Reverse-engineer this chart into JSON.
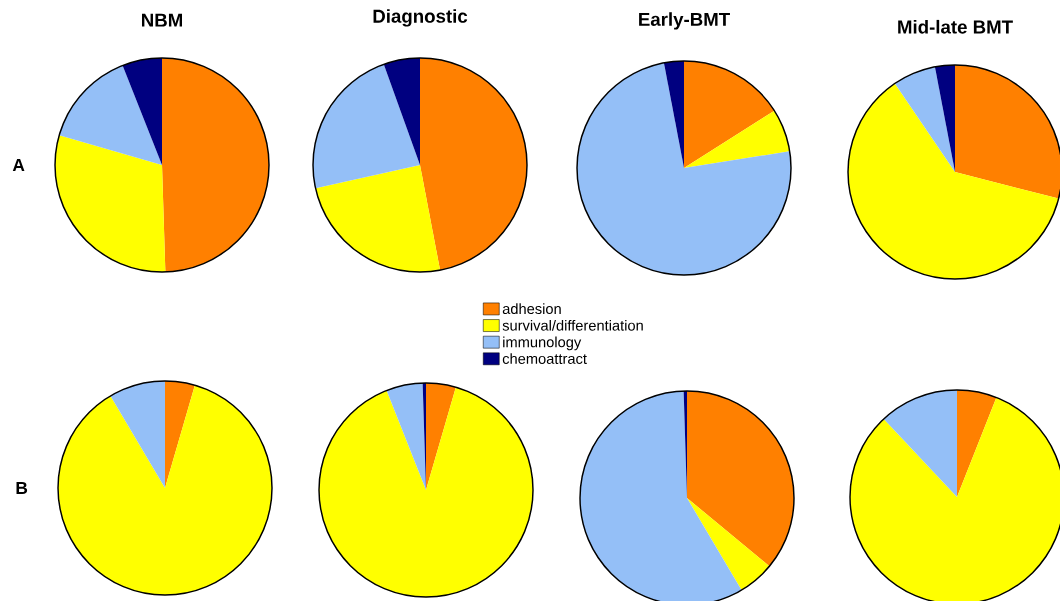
{
  "chart_data": [
    {
      "type": "pie",
      "title": "NBM",
      "categories": [
        "adhesion",
        "survival/differentiation",
        "immunology",
        "chemoattract"
      ],
      "values": [
        49.5,
        30,
        14.5,
        6
      ],
      "colors": [
        "#ff8000",
        "#ffff00",
        "#94bff7",
        "#000080"
      ],
      "legend": "bottom",
      "annotations": [
        "A"
      ]
    },
    {
      "type": "pie",
      "title": "Diagnostic",
      "categories": [
        null,
        null,
        null,
        null
      ],
      "values": [
        47,
        24.5,
        23,
        5.5
      ],
      "colors": [
        "#ff8000",
        "#ffff00",
        "#94bff7",
        "#000080"
      ]
    },
    {
      "type": "pie",
      "title": "Early-BMT",
      "categories": [
        null,
        null,
        null,
        null
      ],
      "values": [
        16,
        6.5,
        74.5,
        3
      ],
      "colors": [
        "#ff8000",
        "#ffff00",
        "#94bff7",
        "#000080"
      ]
    },
    {
      "type": "pie",
      "title": "Mid-late BMT",
      "categories": [
        null,
        null,
        null,
        null
      ],
      "values": [
        29,
        61.5,
        6.5,
        3
      ],
      "colors": [
        "#ff8000",
        "#ffff00",
        "#94bff7",
        "#000080"
      ]
    },
    {
      "type": "pie",
      "categories": [
        null,
        null,
        null,
        null
      ],
      "values": [
        4.5,
        87,
        8.5,
        0
      ],
      "colors": [
        "#ff8000",
        "#ffff00",
        "#94bff7",
        "#000080"
      ],
      "annotations": [
        "B"
      ]
    },
    {
      "type": "pie",
      "categories": [
        null,
        null,
        null,
        null
      ],
      "values": [
        4.5,
        89.5,
        5.5,
        0.5
      ],
      "colors": [
        "#ff8000",
        "#ffff00",
        "#94bff7",
        "#000080"
      ]
    },
    {
      "type": "pie",
      "categories": [
        null,
        null,
        null,
        null
      ],
      "values": [
        36,
        5.5,
        58,
        0.5
      ],
      "colors": [
        "#ff8000",
        "#ffff00",
        "#94bff7",
        "#000080"
      ]
    },
    {
      "type": "pie",
      "categories": [
        null,
        null,
        null,
        null
      ],
      "values": [
        6,
        82,
        12,
        0
      ],
      "colors": [
        "#ff8000",
        "#ffff00",
        "#94bff7",
        "#000080"
      ]
    }
  ]
}
